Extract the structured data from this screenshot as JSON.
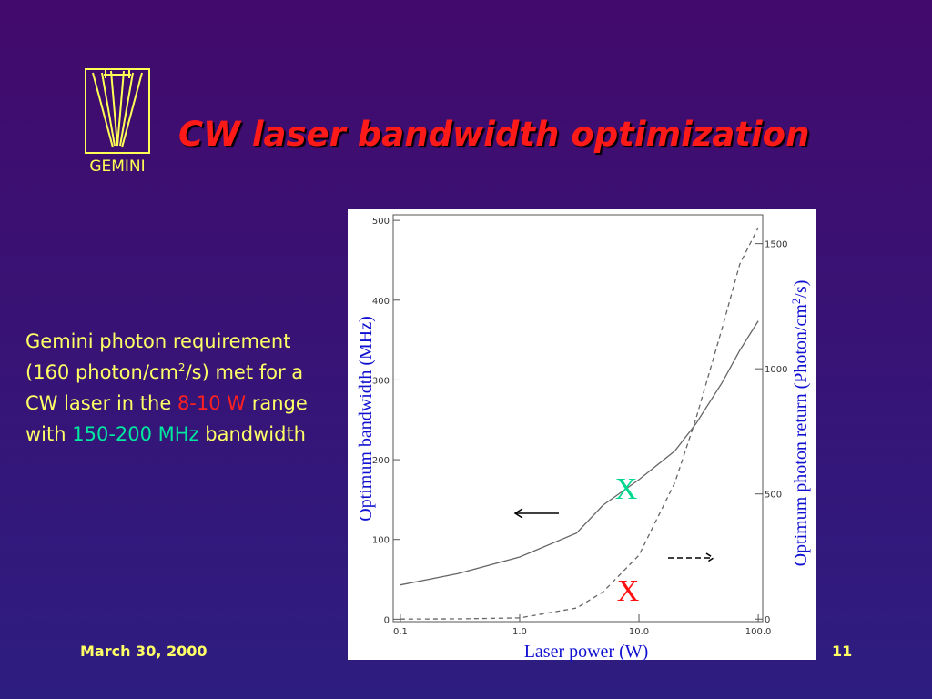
{
  "header": {
    "title": "CW laser bandwidth optimization",
    "logo_text": "GEMINI"
  },
  "body": {
    "segments": [
      "Gemini photon requirement (160 photon/cm",
      "2",
      "/s) met for a CW laser in the ",
      "8-10 W",
      " range with ",
      "150-200 MHz",
      " bandwidth"
    ]
  },
  "footer": {
    "date": "March 30, 2000",
    "page": "11"
  },
  "chart_data": {
    "type": "line",
    "xlabel": "Laser power (W)",
    "ylabel": "Optimum bandwidth (MHz)",
    "y2label": [
      "Optimum photon return (Photon/cm",
      "2",
      "/s)"
    ],
    "log_x": true,
    "x": [
      0.1,
      0.3,
      1,
      3,
      5,
      10,
      20,
      30,
      50,
      70,
      100
    ],
    "xlim": [
      0.087,
      109
    ],
    "xticks": [
      0.1,
      {
        "value": 1,
        "label": "1.0"
      },
      {
        "value": 10,
        "label": "10.0"
      },
      {
        "value": 100,
        "label": "100.0"
      }
    ],
    "ylim": [
      -3,
      507
    ],
    "yticks": [
      0,
      100,
      200,
      300,
      400,
      500
    ],
    "y2lim": [
      -10,
      1615
    ],
    "y2ticks": [
      0,
      500,
      1000,
      1500
    ],
    "series": [
      {
        "color": "#666666",
        "dashed": false,
        "values": [
          43,
          57,
          78,
          108,
          143,
          175,
          211,
          245,
          297,
          337,
          374
        ]
      },
      {
        "color": "#666666",
        "dashed": true,
        "axis": "y2",
        "values": [
          0,
          1,
          5,
          44,
          109,
          255,
          545,
          800,
          1164,
          1418,
          1564
        ]
      }
    ],
    "annotations": [
      {
        "text": "X",
        "color": "#00d890"
      },
      {
        "text": "X",
        "color": "#ff1010"
      }
    ]
  }
}
